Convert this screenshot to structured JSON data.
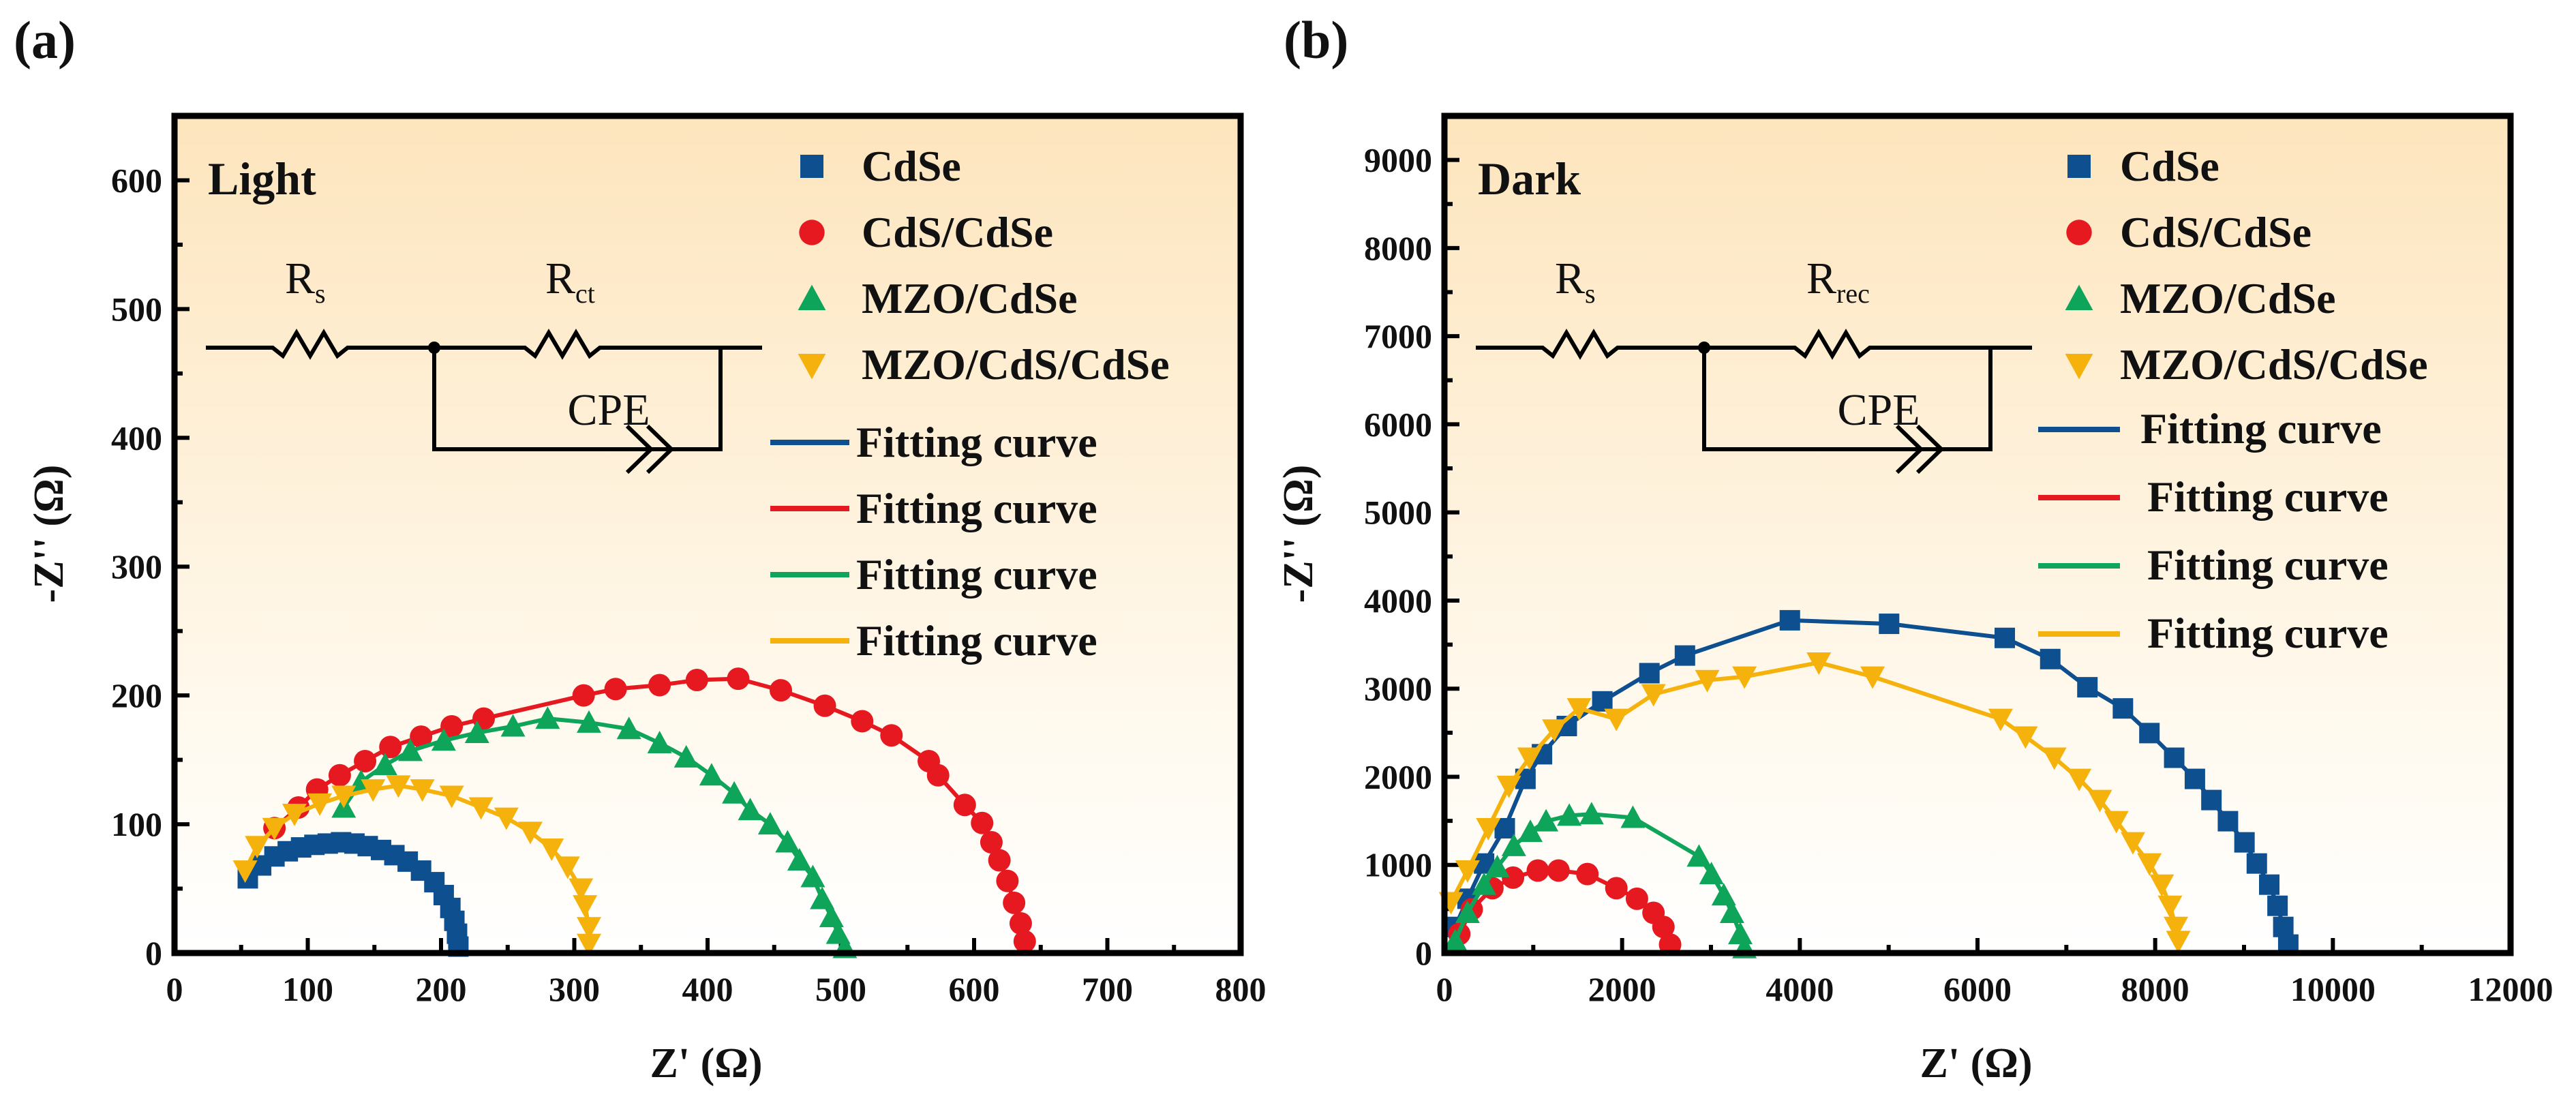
{
  "chart_data": [
    {
      "panel_label": "(a)",
      "type": "scatter",
      "condition": "Light",
      "xlabel": "Z' (Ω)",
      "ylabel": "-Z'' (Ω)",
      "xlim": [
        0,
        800
      ],
      "ylim": [
        0,
        650
      ],
      "xticks": [
        0,
        100,
        200,
        300,
        400,
        500,
        600,
        700,
        800
      ],
      "yticks": [
        0,
        100,
        200,
        300,
        400,
        500,
        600
      ],
      "grid": false,
      "legend_placement": "top-right",
      "background": [
        "#fde5bd",
        "#ffffff"
      ],
      "circuit": {
        "r1": "R",
        "r1_sub": "s",
        "r2": "R",
        "r2_sub": "ct",
        "cpe": "CPE"
      },
      "fit_label": "Fitting curve",
      "series": [
        {
          "name": "CdSe",
          "marker": "square",
          "color": "#0d4f8f",
          "points": [
            [
              55,
              58
            ],
            [
              65,
              68
            ],
            [
              75,
              75
            ],
            [
              85,
              79
            ],
            [
              95,
              82
            ],
            [
              105,
              84
            ],
            [
              115,
              85
            ],
            [
              125,
              86
            ],
            [
              135,
              85
            ],
            [
              145,
              83
            ],
            [
              155,
              80
            ],
            [
              165,
              76
            ],
            [
              175,
              71
            ],
            [
              185,
              64
            ],
            [
              195,
              55
            ],
            [
              202,
              45
            ],
            [
              207,
              35
            ],
            [
              210,
              25
            ],
            [
              212,
              15
            ],
            [
              213,
              5
            ]
          ]
        },
        {
          "name": "CdS/CdSe",
          "marker": "circle",
          "color": "#e5191f",
          "points": [
            [
              75,
              97
            ],
            [
              93,
              113
            ],
            [
              107,
              127
            ],
            [
              124,
              138
            ],
            [
              143,
              149
            ],
            [
              162,
              160
            ],
            [
              185,
              168
            ],
            [
              208,
              176
            ],
            [
              232,
              182
            ],
            [
              307,
              200
            ],
            [
              331,
              205
            ],
            [
              364,
              208
            ],
            [
              392,
              212
            ],
            [
              423,
              213
            ],
            [
              455,
              204
            ],
            [
              488,
              192
            ],
            [
              516,
              180
            ],
            [
              538,
              169
            ],
            [
              566,
              149
            ],
            [
              573,
              138
            ],
            [
              593,
              115
            ],
            [
              606,
              101
            ],
            [
              613,
              86
            ],
            [
              619,
              72
            ],
            [
              625,
              56
            ],
            [
              630,
              39
            ],
            [
              635,
              23
            ],
            [
              638,
              9
            ]
          ]
        },
        {
          "name": "MZO/CdSe",
          "marker": "triangle-up",
          "color": "#0ea55a",
          "points": [
            [
              127,
              113
            ],
            [
              140,
              133
            ],
            [
              158,
              146
            ],
            [
              177,
              157
            ],
            [
              202,
              165
            ],
            [
              227,
              171
            ],
            [
              254,
              176
            ],
            [
              280,
              182
            ],
            [
              311,
              179
            ],
            [
              341,
              174
            ],
            [
              364,
              163
            ],
            [
              384,
              152
            ],
            [
              403,
              138
            ],
            [
              420,
              124
            ],
            [
              432,
              111
            ],
            [
              447,
              100
            ],
            [
              460,
              86
            ],
            [
              469,
              72
            ],
            [
              479,
              59
            ],
            [
              486,
              42
            ],
            [
              493,
              28
            ],
            [
              498,
              15
            ],
            [
              503,
              4
            ]
          ]
        },
        {
          "name": "MZO/CdS/CdSe",
          "marker": "triangle-down",
          "color": "#f6b20c",
          "points": [
            [
              53,
              64
            ],
            [
              62,
              83
            ],
            [
              75,
              97
            ],
            [
              90,
              108
            ],
            [
              109,
              116
            ],
            [
              127,
              122
            ],
            [
              149,
              127
            ],
            [
              168,
              130
            ],
            [
              186,
              127
            ],
            [
              208,
              122
            ],
            [
              230,
              113
            ],
            [
              249,
              105
            ],
            [
              267,
              94
            ],
            [
              283,
              81
            ],
            [
              295,
              67
            ],
            [
              305,
              50
            ],
            [
              308,
              37
            ],
            [
              311,
              20
            ],
            [
              311,
              7
            ]
          ]
        }
      ]
    },
    {
      "panel_label": "(b)",
      "type": "scatter",
      "condition": "Dark",
      "xlabel": "Z' (Ω)",
      "ylabel": "-Z'' (Ω)",
      "xlim": [
        0,
        12000
      ],
      "ylim": [
        0,
        9500
      ],
      "xticks": [
        0,
        2000,
        4000,
        6000,
        8000,
        10000,
        12000
      ],
      "yticks": [
        0,
        1000,
        2000,
        3000,
        4000,
        5000,
        6000,
        7000,
        8000,
        9000
      ],
      "grid": false,
      "legend_placement": "top-right",
      "background": [
        "#fde5bd",
        "#ffffff"
      ],
      "circuit": {
        "r1": "R",
        "r1_sub": "s",
        "r2": "R",
        "r2_sub": "rec",
        "cpe": "CPE"
      },
      "fit_label": "Fitting curve",
      "series": [
        {
          "name": "CdSe",
          "marker": "square",
          "color": "#0d4f8f",
          "points": [
            [
              121,
              296
            ],
            [
              260,
              616
            ],
            [
              446,
              1016
            ],
            [
              679,
              1416
            ],
            [
              912,
              1976
            ],
            [
              1098,
              2256
            ],
            [
              1377,
              2576
            ],
            [
              1777,
              2856
            ],
            [
              2307,
              3176
            ],
            [
              2707,
              3376
            ],
            [
              3888,
              3776
            ],
            [
              5005,
              3736
            ],
            [
              6307,
              3576
            ],
            [
              6819,
              3336
            ],
            [
              7237,
              3016
            ],
            [
              7637,
              2776
            ],
            [
              7935,
              2496
            ],
            [
              8214,
              2216
            ],
            [
              8447,
              1976
            ],
            [
              8633,
              1736
            ],
            [
              8819,
              1496
            ],
            [
              9005,
              1256
            ],
            [
              9144,
              1016
            ],
            [
              9284,
              776
            ],
            [
              9377,
              536
            ],
            [
              9442,
              296
            ],
            [
              9498,
              96
            ]
          ]
        },
        {
          "name": "CdS/CdSe",
          "marker": "circle",
          "color": "#e5191f",
          "points": [
            [
              167,
              216
            ],
            [
              307,
              496
            ],
            [
              540,
              736
            ],
            [
              772,
              856
            ],
            [
              1051,
              936
            ],
            [
              1284,
              936
            ],
            [
              1609,
              896
            ],
            [
              1935,
              736
            ],
            [
              2167,
              616
            ],
            [
              2353,
              456
            ],
            [
              2465,
              296
            ],
            [
              2540,
              96
            ]
          ]
        },
        {
          "name": "MZO/CdSe",
          "marker": "triangle-up",
          "color": "#0ea55a",
          "points": [
            [
              121,
              136
            ],
            [
              260,
              456
            ],
            [
              446,
              776
            ],
            [
              595,
              976
            ],
            [
              781,
              1216
            ],
            [
              967,
              1376
            ],
            [
              1144,
              1496
            ],
            [
              1405,
              1560
            ],
            [
              1656,
              1576
            ],
            [
              2121,
              1536
            ],
            [
              2865,
              1096
            ],
            [
              3005,
              896
            ],
            [
              3144,
              656
            ],
            [
              3237,
              456
            ],
            [
              3330,
              216
            ],
            [
              3377,
              56
            ]
          ]
        },
        {
          "name": "MZO/CdS/CdSe",
          "marker": "triangle-down",
          "color": "#f6b20c",
          "points": [
            [
              74,
              576
            ],
            [
              260,
              936
            ],
            [
              493,
              1416
            ],
            [
              726,
              1896
            ],
            [
              958,
              2216
            ],
            [
              1237,
              2536
            ],
            [
              1516,
              2776
            ],
            [
              1935,
              2656
            ],
            [
              2353,
              2936
            ],
            [
              2958,
              3096
            ],
            [
              3377,
              3136
            ],
            [
              4214,
              3296
            ],
            [
              4819,
              3136
            ],
            [
              6260,
              2656
            ],
            [
              6540,
              2456
            ],
            [
              6865,
              2216
            ],
            [
              7144,
              1976
            ],
            [
              7377,
              1736
            ],
            [
              7563,
              1496
            ],
            [
              7749,
              1256
            ],
            [
              7935,
              1016
            ],
            [
              8074,
              776
            ],
            [
              8167,
              536
            ],
            [
              8233,
              296
            ],
            [
              8260,
              136
            ]
          ]
        }
      ]
    }
  ]
}
